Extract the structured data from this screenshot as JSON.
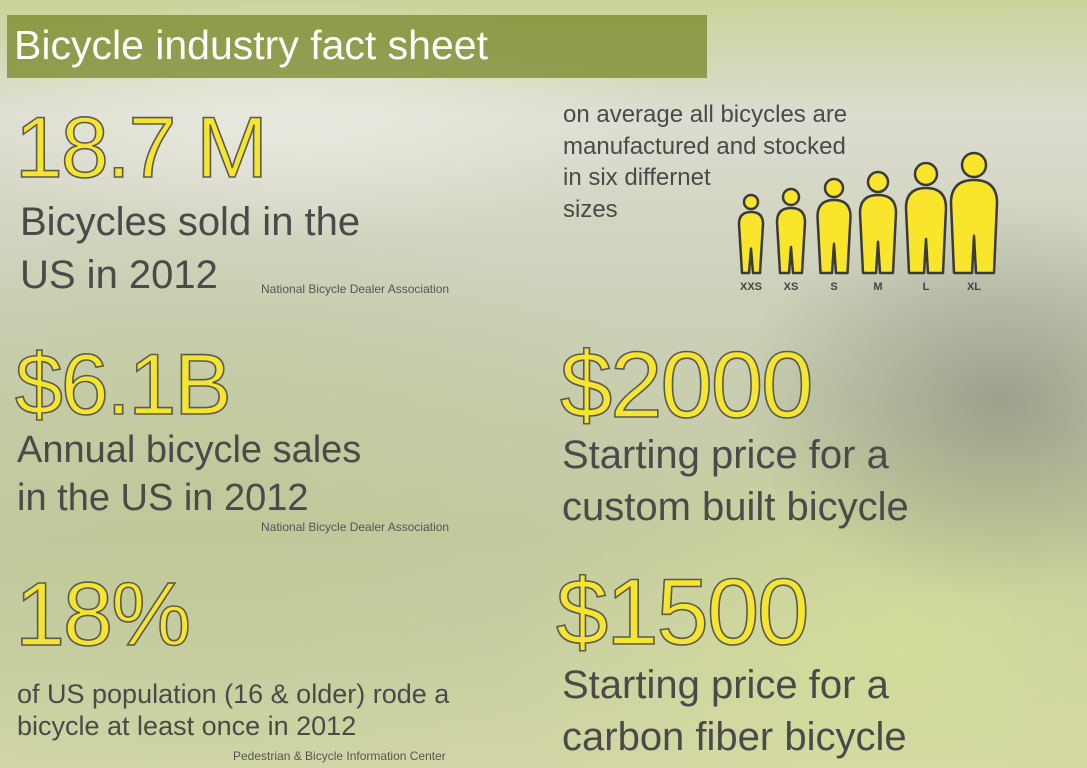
{
  "header": {
    "title": "Bicycle industry fact sheet"
  },
  "facts": [
    {
      "figure": "18.7 M",
      "description": [
        "Bicycles sold in the",
        "US in 2012"
      ],
      "source": "National Bicycle Dealer Association"
    },
    {
      "figure": "$6.1B",
      "description": [
        "Annual bicycle sales",
        "in the US in 2012"
      ],
      "source": "National Bicycle Dealer Association"
    },
    {
      "figure": "18%",
      "description": [
        "of US population (16 & older) rode a",
        "bicycle at least once in 2012"
      ],
      "source": "Pedestrian & Bicycle Information Center"
    },
    {
      "figure": "$2000",
      "description": [
        "Starting price for a",
        "custom built bicycle"
      ]
    },
    {
      "figure": "$1500",
      "description": [
        "Starting price for a",
        "carbon fiber bicycle"
      ]
    }
  ],
  "sizes": {
    "text": [
      "on average all bicycles are",
      "manufactured and stocked",
      "in six differnet",
      "sizes"
    ],
    "labels": [
      "XXS",
      "XS",
      "S",
      "M",
      "L",
      "XL"
    ]
  }
}
